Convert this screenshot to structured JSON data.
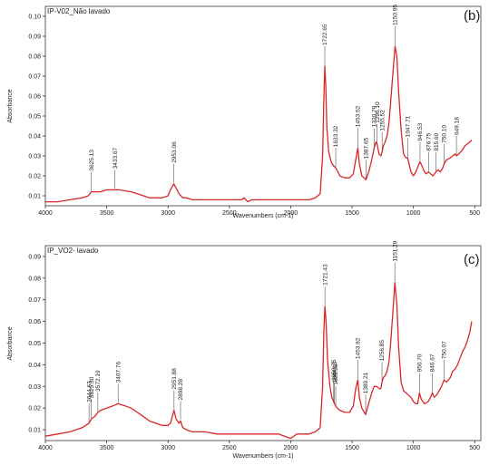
{
  "colors": {
    "series": "#d9262b",
    "axis": "#333333",
    "text": "#222222",
    "peak_line": "#555555"
  },
  "chart_data": [
    {
      "type": "line",
      "panel_label": "(b)",
      "sample_label": "IP-V02_Não lavado",
      "xlabel": "Wavenumbers (cm-1)",
      "ylabel": "Absorbance",
      "xlim": [
        4000,
        450
      ],
      "x_reversed": true,
      "ylim": [
        0.005,
        0.105
      ],
      "xticks": [
        4000,
        3500,
        3000,
        2500,
        2000,
        1500,
        1000,
        500
      ],
      "yticks": [
        0.01,
        0.02,
        0.03,
        0.04,
        0.05,
        0.06,
        0.07,
        0.08,
        0.09,
        0.1
      ],
      "ytick_labels": [
        "0.01",
        "0.02",
        "0.03",
        "0.04",
        "0.05",
        "0.06",
        "0.07",
        "0.08",
        "0.09",
        "0.10"
      ],
      "grid": false,
      "series": [
        {
          "x": [
            4000,
            3900,
            3800,
            3700,
            3650,
            3625,
            3600,
            3550,
            3500,
            3433,
            3400,
            3350,
            3300,
            3250,
            3200,
            3150,
            3100,
            3050,
            3000,
            2980,
            2953,
            2935,
            2910,
            2880,
            2850,
            2800,
            2700,
            2600,
            2500,
            2400,
            2380,
            2350,
            2320,
            2300,
            2200,
            2100,
            2050,
            2000,
            1950,
            1900,
            1850,
            1800,
            1760,
            1740,
            1730,
            1722,
            1715,
            1705,
            1690,
            1670,
            1650,
            1633,
            1615,
            1600,
            1560,
            1520,
            1490,
            1470,
            1453,
            1440,
            1420,
            1400,
            1387,
            1375,
            1360,
            1340,
            1320,
            1305,
            1296,
            1280,
            1265,
            1255,
            1245,
            1230,
            1215,
            1200,
            1185,
            1165,
            1150,
            1135,
            1120,
            1100,
            1080,
            1060,
            1047,
            1035,
            1020,
            1000,
            980,
            960,
            946,
            930,
            910,
            895,
            876,
            860,
            840,
            815,
            800,
            780,
            760,
            750,
            730,
            700,
            680,
            660,
            649,
            630,
            600,
            580,
            560,
            540,
            525
          ],
          "y": [
            0.007,
            0.007,
            0.008,
            0.009,
            0.01,
            0.012,
            0.012,
            0.012,
            0.013,
            0.013,
            0.013,
            0.0125,
            0.012,
            0.011,
            0.01,
            0.009,
            0.009,
            0.009,
            0.01,
            0.013,
            0.016,
            0.014,
            0.011,
            0.009,
            0.009,
            0.008,
            0.008,
            0.008,
            0.008,
            0.008,
            0.009,
            0.007,
            0.008,
            0.008,
            0.008,
            0.008,
            0.008,
            0.008,
            0.008,
            0.008,
            0.008,
            0.009,
            0.011,
            0.03,
            0.058,
            0.075,
            0.066,
            0.044,
            0.032,
            0.027,
            0.025,
            0.024,
            0.022,
            0.02,
            0.019,
            0.019,
            0.021,
            0.028,
            0.034,
            0.026,
            0.02,
            0.019,
            0.018,
            0.02,
            0.023,
            0.028,
            0.034,
            0.037,
            0.036,
            0.031,
            0.03,
            0.032,
            0.035,
            0.037,
            0.04,
            0.046,
            0.057,
            0.073,
            0.085,
            0.08,
            0.062,
            0.043,
            0.031,
            0.029,
            0.029,
            0.026,
            0.022,
            0.02,
            0.022,
            0.025,
            0.027,
            0.025,
            0.022,
            0.021,
            0.022,
            0.021,
            0.02,
            0.022,
            0.023,
            0.022,
            0.024,
            0.026,
            0.028,
            0.029,
            0.03,
            0.031,
            0.03,
            0.031,
            0.033,
            0.035,
            0.036,
            0.037,
            0.038
          ]
        }
      ],
      "annotations": [
        {
          "label": "3625.13",
          "x": 3625,
          "y": 0.012
        },
        {
          "label": "3433.67",
          "x": 3433,
          "y": 0.013
        },
        {
          "label": "2953.06",
          "x": 2953,
          "y": 0.016
        },
        {
          "label": "1722.65",
          "x": 1722,
          "y": 0.075
        },
        {
          "label": "1633.32",
          "x": 1633,
          "y": 0.024
        },
        {
          "label": "1453.52",
          "x": 1453,
          "y": 0.034
        },
        {
          "label": "1387.65",
          "x": 1387,
          "y": 0.018
        },
        {
          "label": "1320.79",
          "x": 1320,
          "y": 0.034
        },
        {
          "label": "1296.10",
          "x": 1296,
          "y": 0.036
        },
        {
          "label": "1255.52",
          "x": 1255,
          "y": 0.032
        },
        {
          "label": "1150.95",
          "x": 1150,
          "y": 0.085
        },
        {
          "label": "1047.71",
          "x": 1047,
          "y": 0.029
        },
        {
          "label": "946.53",
          "x": 946,
          "y": 0.027
        },
        {
          "label": "876.75",
          "x": 876,
          "y": 0.022
        },
        {
          "label": "815.60",
          "x": 815,
          "y": 0.022
        },
        {
          "label": "750.10",
          "x": 750,
          "y": 0.026
        },
        {
          "label": "649.18",
          "x": 649,
          "y": 0.03
        }
      ]
    },
    {
      "type": "line",
      "panel_label": "(c)",
      "sample_label": "IP_VO2- lavado",
      "xlabel": "Wavenumbers (cm-1)",
      "ylabel": "Absorbance",
      "xlim": [
        4000,
        450
      ],
      "x_reversed": true,
      "ylim": [
        0.005,
        0.095
      ],
      "xticks": [
        4000,
        3500,
        3000,
        2500,
        2000,
        1500,
        1000,
        500
      ],
      "yticks": [
        0.01,
        0.02,
        0.03,
        0.04,
        0.05,
        0.06,
        0.07,
        0.08,
        0.09
      ],
      "ytick_labels": [
        "0.01",
        "0.02",
        "0.03",
        "0.04",
        "0.05",
        "0.06",
        "0.07",
        "0.08",
        "0.09"
      ],
      "grid": false,
      "series": [
        {
          "x": [
            4000,
            3900,
            3800,
            3700,
            3644,
            3625,
            3600,
            3572,
            3550,
            3500,
            3450,
            3407,
            3350,
            3300,
            3250,
            3200,
            3150,
            3100,
            3050,
            3000,
            2980,
            2951,
            2935,
            2910,
            2898,
            2880,
            2850,
            2800,
            2700,
            2600,
            2500,
            2400,
            2300,
            2200,
            2100,
            2050,
            2000,
            1950,
            1900,
            1850,
            1800,
            1760,
            1740,
            1730,
            1721,
            1712,
            1700,
            1680,
            1665,
            1650,
            1644,
            1633,
            1620,
            1600,
            1560,
            1520,
            1490,
            1470,
            1453,
            1440,
            1420,
            1400,
            1389,
            1375,
            1360,
            1340,
            1320,
            1300,
            1280,
            1265,
            1256,
            1245,
            1230,
            1215,
            1200,
            1185,
            1165,
            1151,
            1135,
            1120,
            1100,
            1080,
            1060,
            1040,
            1020,
            1000,
            980,
            965,
            950,
            935,
            910,
            880,
            860,
            846,
            830,
            810,
            790,
            770,
            750,
            730,
            700,
            680,
            660,
            640,
            620,
            600,
            580,
            560,
            540,
            525
          ],
          "y": [
            0.007,
            0.008,
            0.009,
            0.011,
            0.013,
            0.015,
            0.016,
            0.018,
            0.019,
            0.02,
            0.021,
            0.022,
            0.021,
            0.02,
            0.018,
            0.016,
            0.014,
            0.013,
            0.012,
            0.012,
            0.013,
            0.019,
            0.015,
            0.013,
            0.014,
            0.011,
            0.01,
            0.009,
            0.009,
            0.008,
            0.008,
            0.008,
            0.008,
            0.008,
            0.008,
            0.007,
            0.006,
            0.008,
            0.008,
            0.008,
            0.009,
            0.011,
            0.03,
            0.055,
            0.067,
            0.06,
            0.042,
            0.03,
            0.025,
            0.023,
            0.022,
            0.021,
            0.02,
            0.019,
            0.018,
            0.018,
            0.021,
            0.029,
            0.033,
            0.025,
            0.02,
            0.018,
            0.017,
            0.02,
            0.023,
            0.027,
            0.03,
            0.03,
            0.029,
            0.029,
            0.032,
            0.034,
            0.035,
            0.037,
            0.041,
            0.05,
            0.066,
            0.078,
            0.068,
            0.048,
            0.032,
            0.028,
            0.027,
            0.026,
            0.025,
            0.023,
            0.022,
            0.022,
            0.027,
            0.024,
            0.022,
            0.023,
            0.025,
            0.027,
            0.025,
            0.026,
            0.028,
            0.03,
            0.033,
            0.032,
            0.034,
            0.037,
            0.038,
            0.04,
            0.043,
            0.046,
            0.048,
            0.051,
            0.055,
            0.06
          ]
        }
      ],
      "annotations": [
        {
          "label": "3644.63",
          "x": 3644,
          "y": 0.013
        },
        {
          "label": "3625.30",
          "x": 3625,
          "y": 0.015
        },
        {
          "label": "3572.19",
          "x": 3572,
          "y": 0.018
        },
        {
          "label": "3407.76",
          "x": 3407,
          "y": 0.022
        },
        {
          "label": "2951.88",
          "x": 2951,
          "y": 0.019
        },
        {
          "label": "2898.28",
          "x": 2898,
          "y": 0.014
        },
        {
          "label": "1721.43",
          "x": 1721,
          "y": 0.067
        },
        {
          "label": "1650.75",
          "x": 1650,
          "y": 0.023
        },
        {
          "label": "1644.13",
          "x": 1644,
          "y": 0.022
        },
        {
          "label": "1633.39",
          "x": 1633,
          "y": 0.021
        },
        {
          "label": "1453.92",
          "x": 1453,
          "y": 0.033
        },
        {
          "label": "1389.21",
          "x": 1389,
          "y": 0.017
        },
        {
          "label": "1256.85",
          "x": 1256,
          "y": 0.032
        },
        {
          "label": "1151.29",
          "x": 1151,
          "y": 0.078
        },
        {
          "label": "950.70",
          "x": 950,
          "y": 0.027
        },
        {
          "label": "846.67",
          "x": 846,
          "y": 0.027
        },
        {
          "label": "750.07",
          "x": 750,
          "y": 0.033
        }
      ]
    }
  ]
}
